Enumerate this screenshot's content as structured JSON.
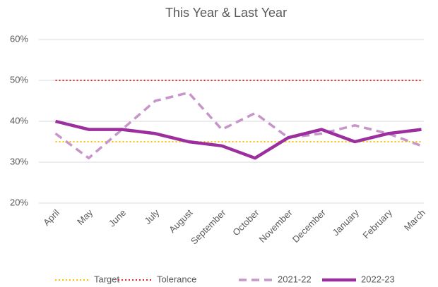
{
  "chart_data": {
    "type": "line",
    "title": "This Year & Last Year",
    "categories": [
      "April",
      "May",
      "June",
      "July",
      "August",
      "September",
      "October",
      "November",
      "December",
      "January",
      "February",
      "March"
    ],
    "series": [
      {
        "name": "Target",
        "color": "#ffc000",
        "style": "dotted",
        "values": [
          35,
          35,
          35,
          35,
          35,
          35,
          35,
          35,
          35,
          35,
          35,
          35
        ]
      },
      {
        "name": "Tolerance",
        "color": "#e8202a",
        "style": "dotted",
        "values": [
          50,
          50,
          50,
          50,
          50,
          50,
          50,
          50,
          50,
          50,
          50,
          50
        ]
      },
      {
        "name": "2021-22",
        "color": "#c795c9",
        "style": "dashed",
        "values": [
          37,
          31,
          38,
          45,
          47,
          38,
          42,
          36,
          37,
          39,
          37,
          34
        ]
      },
      {
        "name": "2022-23",
        "color": "#9b2f9e",
        "style": "solid",
        "values": [
          40,
          38,
          38,
          37,
          35,
          34,
          31,
          36,
          38,
          35,
          37,
          38
        ]
      }
    ],
    "ylim": [
      20,
      60
    ],
    "yticks": [
      {
        "value": 20,
        "label": "20%"
      },
      {
        "value": 30,
        "label": "30%"
      },
      {
        "value": 40,
        "label": "40%"
      },
      {
        "value": 50,
        "label": "50%"
      },
      {
        "value": 60,
        "label": "60%"
      }
    ],
    "grid": true,
    "legend": "bottom"
  }
}
